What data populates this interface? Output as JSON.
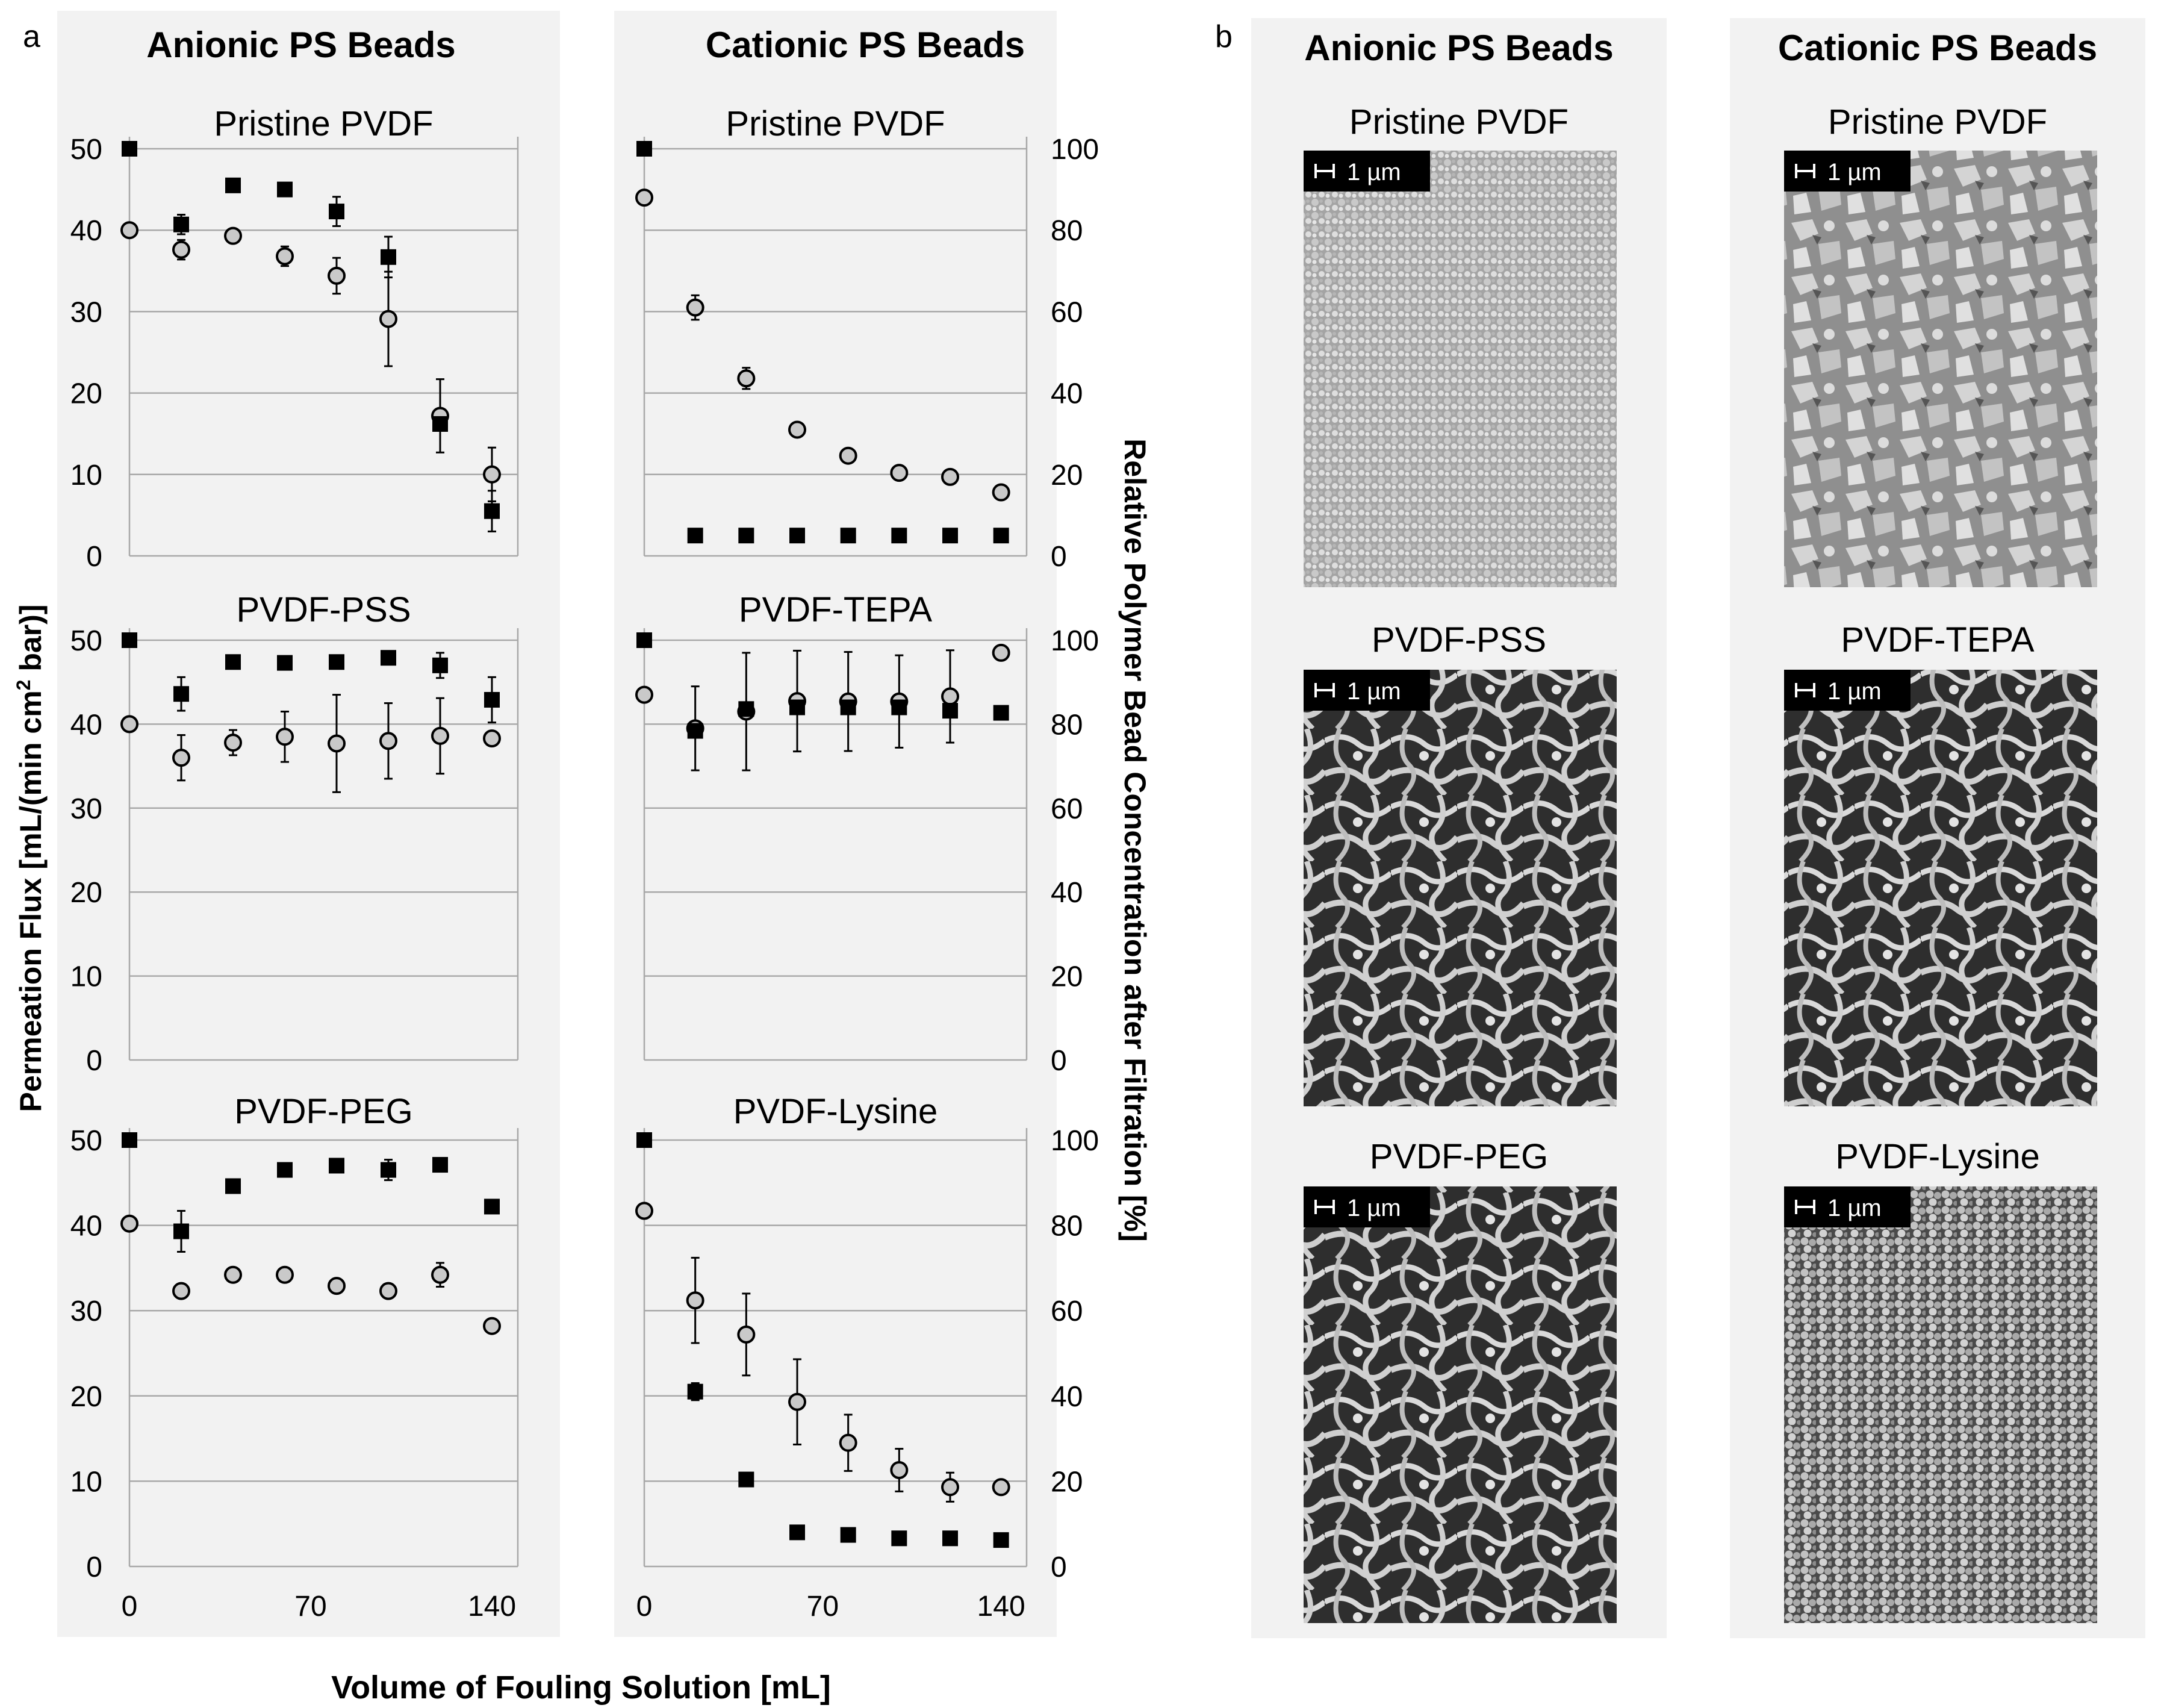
{
  "panel_a": {
    "letter": "a",
    "col_titles": [
      "Anionic PS Beads",
      "Cationic PS Beads"
    ],
    "ylabel_left_main": "Permeation  Flux [mL/(min cm",
    "ylabel_left_sup": "2",
    "ylabel_left_end": " bar)]",
    "ylabel_right": "Relative Polymer Bead Concentration after Filtration [%]",
    "xlabel": "Volume of Fouling Solution [mL]"
  },
  "panel_b": {
    "letter": "b",
    "col_titles": [
      "Anionic PS Beads",
      "Cationic PS Beads"
    ],
    "rows": [
      [
        "Pristine PVDF",
        "Pristine PVDF"
      ],
      [
        "PVDF-PSS",
        "PVDF-TEPA"
      ],
      [
        "PVDF-PEG",
        "PVDF-Lysine"
      ]
    ],
    "scale_label": "1 µm"
  },
  "chart_data": [
    {
      "type": "scatter",
      "title": "Pristine PVDF",
      "x_ticks": [
        0,
        70,
        140
      ],
      "xlim": [
        0,
        150
      ],
      "y_ticks": [
        0,
        10,
        20,
        30,
        40,
        50
      ],
      "ylim": [
        0,
        50
      ],
      "series": [
        {
          "marker": "square",
          "axis": "right_scale_0_100",
          "points": [
            [
              0,
              50
            ],
            [
              20,
              40.7
            ],
            [
              40,
              45.5
            ],
            [
              60,
              45
            ],
            [
              80,
              42.3
            ],
            [
              100,
              36.7
            ],
            [
              120,
              16.2
            ],
            [
              140,
              5.5
            ]
          ],
          "err": [
            0,
            1.2,
            0,
            0,
            1.8,
            2.5,
            0,
            2.5
          ]
        },
        {
          "marker": "circle",
          "axis": "left",
          "points": [
            [
              0,
              40
            ],
            [
              20,
              37.6
            ],
            [
              40,
              39.3
            ],
            [
              60,
              36.8
            ],
            [
              80,
              34.4
            ],
            [
              100,
              29.1
            ],
            [
              120,
              17.2
            ],
            [
              140,
              10
            ]
          ],
          "err": [
            0,
            1.2,
            0,
            1.2,
            2.2,
            5.8,
            4.5,
            3.3
          ]
        }
      ]
    },
    {
      "type": "scatter",
      "title": "Pristine PVDF",
      "x_ticks": [
        0,
        70,
        140
      ],
      "xlim": [
        0,
        150
      ],
      "y_ticks": [
        0,
        20,
        40,
        60,
        80,
        100
      ],
      "ylim": [
        0,
        100
      ],
      "series": [
        {
          "marker": "square",
          "axis": "right",
          "points": [
            [
              0,
              100
            ],
            [
              20,
              5
            ],
            [
              40,
              5
            ],
            [
              60,
              5
            ],
            [
              80,
              5
            ],
            [
              100,
              5
            ],
            [
              120,
              5
            ],
            [
              140,
              5
            ]
          ],
          "err": [
            0,
            0,
            0,
            0,
            0,
            0,
            0,
            0
          ]
        },
        {
          "marker": "circle",
          "axis": "left_scale_0_50",
          "points": [
            [
              0,
              88
            ],
            [
              20,
              61
            ],
            [
              40,
              43.6
            ],
            [
              60,
              31
            ],
            [
              80,
              24.6
            ],
            [
              100,
              20.4
            ],
            [
              120,
              19.4
            ],
            [
              140,
              15.6
            ]
          ],
          "err": [
            0,
            3,
            2.6,
            1.2,
            1.2,
            1,
            1,
            1
          ]
        }
      ]
    },
    {
      "type": "scatter",
      "title": "PVDF-PSS",
      "x_ticks": [
        0,
        70,
        140
      ],
      "xlim": [
        0,
        150
      ],
      "y_ticks": [
        0,
        10,
        20,
        30,
        40,
        50
      ],
      "ylim": [
        0,
        50
      ],
      "series": [
        {
          "marker": "square",
          "axis": "right_scale_0_100",
          "points": [
            [
              0,
              50
            ],
            [
              20,
              43.6
            ],
            [
              40,
              47.4
            ],
            [
              60,
              47.3
            ],
            [
              80,
              47.4
            ],
            [
              100,
              47.9
            ],
            [
              120,
              47
            ],
            [
              140,
              42.9
            ]
          ],
          "err": [
            0,
            2,
            0,
            0,
            0,
            0,
            1.5,
            2.7
          ]
        },
        {
          "marker": "circle",
          "axis": "left",
          "points": [
            [
              0,
              40
            ],
            [
              20,
              36
            ],
            [
              40,
              37.8
            ],
            [
              60,
              38.5
            ],
            [
              80,
              37.7
            ],
            [
              100,
              38
            ],
            [
              120,
              38.6
            ],
            [
              140,
              38.3
            ]
          ],
          "err": [
            0,
            2.7,
            1.5,
            3,
            5.8,
            4.5,
            4.5,
            0
          ]
        }
      ]
    },
    {
      "type": "scatter",
      "title": "PVDF-TEPA",
      "x_ticks": [
        0,
        70,
        140
      ],
      "xlim": [
        0,
        150
      ],
      "y_ticks": [
        0,
        20,
        40,
        60,
        80,
        100
      ],
      "ylim": [
        0,
        100
      ],
      "series": [
        {
          "marker": "square",
          "axis": "right",
          "points": [
            [
              0,
              100
            ],
            [
              20,
              78.4
            ],
            [
              40,
              83.6
            ],
            [
              60,
              84
            ],
            [
              80,
              84
            ],
            [
              100,
              84
            ],
            [
              120,
              83.2
            ],
            [
              140,
              82.7
            ]
          ],
          "err": [
            0,
            0,
            0,
            0,
            0,
            0,
            0,
            0
          ]
        },
        {
          "marker": "circle",
          "axis": "left_scale_0_50",
          "points": [
            [
              0,
              87
            ],
            [
              20,
              79
            ],
            [
              40,
              83
            ],
            [
              60,
              85.5
            ],
            [
              80,
              85.4
            ],
            [
              100,
              85.4
            ],
            [
              120,
              86.6
            ],
            [
              140,
              97
            ]
          ],
          "err": [
            0,
            10,
            14,
            12,
            11.8,
            11,
            11,
            0
          ]
        }
      ]
    },
    {
      "type": "scatter",
      "title": "PVDF-PEG",
      "x_ticks": [
        0,
        70,
        140
      ],
      "xlim": [
        0,
        150
      ],
      "y_ticks": [
        0,
        10,
        20,
        30,
        40,
        50
      ],
      "ylim": [
        0,
        50
      ],
      "series": [
        {
          "marker": "square",
          "axis": "right_scale_0_100",
          "points": [
            [
              0,
              50
            ],
            [
              20,
              39.3
            ],
            [
              40,
              44.6
            ],
            [
              60,
              46.5
            ],
            [
              80,
              47
            ],
            [
              100,
              46.5
            ],
            [
              120,
              47.1
            ],
            [
              140,
              42.2
            ]
          ],
          "err": [
            0,
            2.4,
            0,
            0,
            0,
            1.2,
            0,
            0
          ]
        },
        {
          "marker": "circle",
          "axis": "left",
          "points": [
            [
              0,
              40.2
            ],
            [
              20,
              32.3
            ],
            [
              40,
              34.2
            ],
            [
              60,
              34.2
            ],
            [
              80,
              32.9
            ],
            [
              100,
              32.3
            ],
            [
              120,
              34.2
            ],
            [
              140,
              28.2
            ]
          ],
          "err": [
            0,
            0,
            0,
            0,
            0,
            0,
            1.4,
            0
          ]
        }
      ]
    },
    {
      "type": "scatter",
      "title": "PVDF-Lysine",
      "x_ticks": [
        0,
        70,
        140
      ],
      "xlim": [
        0,
        150
      ],
      "y_ticks": [
        0,
        20,
        40,
        60,
        80,
        100
      ],
      "ylim": [
        0,
        100
      ],
      "series": [
        {
          "marker": "square",
          "axis": "right",
          "points": [
            [
              0,
              100
            ],
            [
              20,
              41
            ],
            [
              40,
              20.4
            ],
            [
              60,
              8
            ],
            [
              80,
              7.4
            ],
            [
              100,
              6.6
            ],
            [
              120,
              6.6
            ],
            [
              140,
              6.2
            ]
          ],
          "err": [
            0,
            2,
            0,
            0,
            0,
            0,
            0,
            0
          ]
        },
        {
          "marker": "circle",
          "axis": "left_scale_0_50",
          "points": [
            [
              0,
              83.4
            ],
            [
              20,
              62.4
            ],
            [
              40,
              54.4
            ],
            [
              60,
              38.6
            ],
            [
              80,
              29
            ],
            [
              100,
              22.6
            ],
            [
              120,
              18.6
            ],
            [
              140,
              18.6
            ]
          ],
          "err": [
            0,
            10,
            9.6,
            10,
            6.6,
            5,
            3.4,
            0
          ]
        }
      ]
    }
  ]
}
